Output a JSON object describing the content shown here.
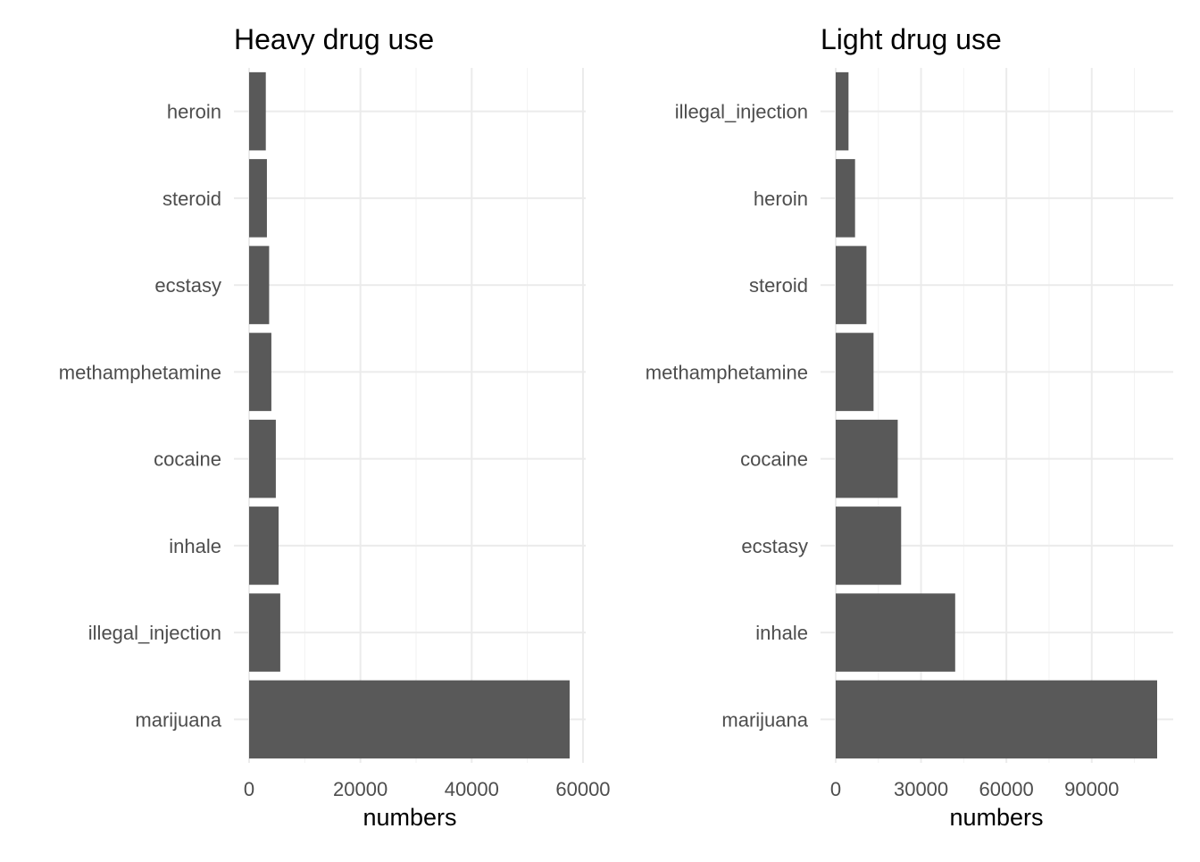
{
  "chart_data": [
    {
      "type": "bar",
      "orientation": "horizontal",
      "title": "Heavy drug use",
      "xlabel": "numbers",
      "ylabel": "",
      "categories": [
        "heroin",
        "steroid",
        "ecstasy",
        "methamphetamine",
        "cocaine",
        "inhale",
        "illegal_injection",
        "marijuana"
      ],
      "values": [
        3000,
        3200,
        3600,
        4000,
        4800,
        5300,
        5600,
        57600
      ],
      "xlim": [
        0,
        60000
      ],
      "xticks": [
        0,
        20000,
        40000,
        60000
      ],
      "xtick_labels": [
        "0",
        "20000",
        "40000",
        "60000"
      ],
      "grid": true,
      "bar_color": "#595959"
    },
    {
      "type": "bar",
      "orientation": "horizontal",
      "title": "Light drug use",
      "xlabel": "numbers",
      "ylabel": "",
      "categories": [
        "illegal_injection",
        "heroin",
        "steroid",
        "methamphetamine",
        "cocaine",
        "ecstasy",
        "inhale",
        "marijuana"
      ],
      "values": [
        4500,
        6800,
        10800,
        13300,
        21800,
        23000,
        42000,
        113000
      ],
      "xlim": [
        0,
        113000
      ],
      "xticks": [
        0,
        30000,
        60000,
        90000
      ],
      "xtick_labels": [
        "0",
        "30000",
        "60000",
        "90000"
      ],
      "grid": true,
      "bar_color": "#595959"
    }
  ]
}
